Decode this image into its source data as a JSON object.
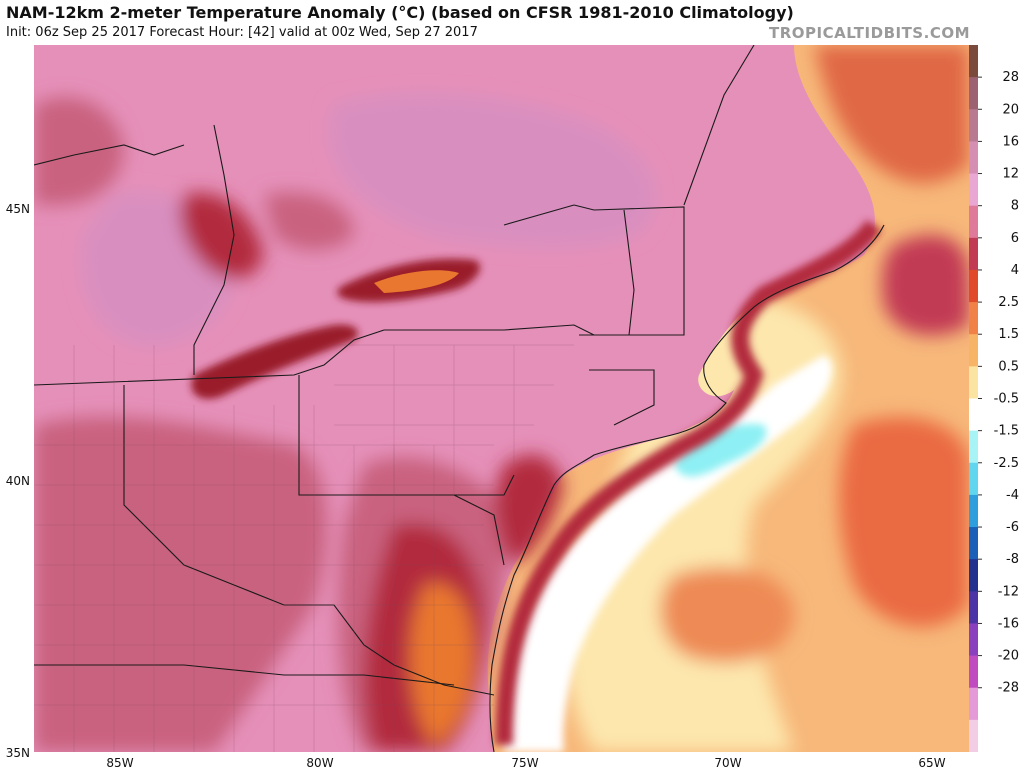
{
  "header": {
    "title": "NAM-12km 2-meter Temperature Anomaly (°C) (based on CFSR 1981-2010 Climatology)",
    "subtitle": "Init: 06z Sep 25 2017   Forecast Hour: [42]   valid at 00z Wed, Sep 27 2017",
    "credit": "TROPICALTIDBITS.COM"
  },
  "axes": {
    "latitudes": [
      "45N",
      "40N",
      "35N"
    ],
    "longitudes": [
      "85W",
      "80W",
      "75W",
      "70W",
      "65W"
    ]
  },
  "colorbar": {
    "labels": [
      "28",
      "20",
      "16",
      "12",
      "8",
      "6",
      "4",
      "2.5",
      "1.5",
      "0.5",
      "-0.5",
      "-1.5",
      "-2.5",
      "-4",
      "-6",
      "-8",
      "-12",
      "-16",
      "-20",
      "-28"
    ],
    "colors": [
      "#7a4a3c",
      "#9d6271",
      "#b77a90",
      "#d58fb3",
      "#e9a8d3",
      "#e07a9a",
      "#c23b55",
      "#e04a2a",
      "#f08248",
      "#f7b466",
      "#fbe3a2",
      "#ffffff",
      "#a8f3f6",
      "#62d6ee",
      "#2e9fdc",
      "#1a5fb8",
      "#22308e",
      "#4c34a6",
      "#8a3fbe",
      "#c04bc0",
      "#e39ad6",
      "#f3cde6"
    ]
  },
  "map": {
    "colors": {
      "ocean_warm": "#f7b87a",
      "ocean_hot": "#ea6a43",
      "ocean_cool": "#fde7ad",
      "near_zero": "#ffffff",
      "cold_patch": "#8ef0f4",
      "land_pink": "#e590b9",
      "land_lavender": "#d88fc0",
      "land_mauve": "#c9627f",
      "land_red": "#b22b3e",
      "lake_hot": "#9a1e2a",
      "orange": "#e9772f"
    }
  }
}
